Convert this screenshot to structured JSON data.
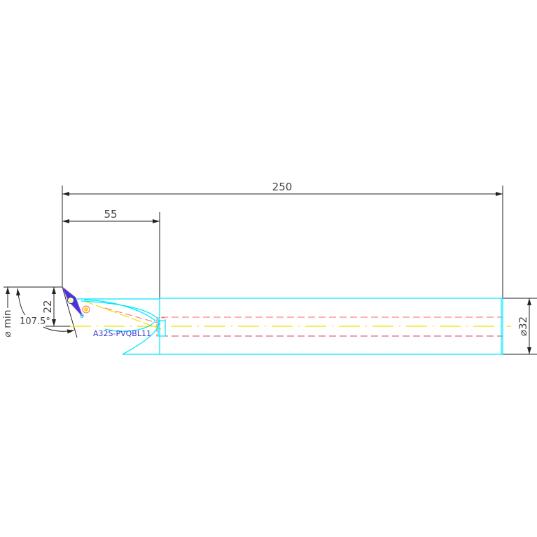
{
  "dimensions": {
    "overall_length": "250",
    "head_length": "55",
    "offset": "22",
    "angle": "107.5°",
    "min_bore": "⌀ min",
    "shank_diameter": "⌀32"
  },
  "part_label": "A32S-PVQBL11",
  "colors": {
    "outline": "#00e5ff",
    "dimension": "#222222",
    "centerline": "#f0e000",
    "hidden": "#ff5a5a",
    "insert": "#3030d0",
    "label": "#3a3ad8"
  }
}
